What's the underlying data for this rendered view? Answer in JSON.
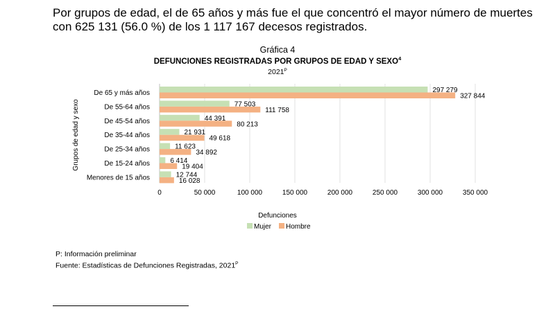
{
  "intro_text": "Por grupos de edad, el de 65 años y más fue el que concentró el mayor número de muertes con 625 131 (56.0 %) de los 1 117 167 decesos registrados.",
  "chart_data": {
    "type": "bar",
    "orientation": "horizontal",
    "label": "Gráfica 4",
    "title": "DEFUNCIONES REGISTRADAS POR GRUPOS DE EDAD Y SEXO",
    "title_superscript": "4",
    "subtitle": "2021",
    "subtitle_superscript": "P",
    "categories": [
      "De 65 y más años",
      "De 55-64 años",
      "De 45-54 años",
      "De 35-44 años",
      "De 25-34 años",
      "De 15-24 años",
      "Menores de 15 años"
    ],
    "series": [
      {
        "name": "Mujer",
        "color": "#c6e0b4",
        "values": [
          297279,
          77503,
          44391,
          21931,
          11623,
          6414,
          12744
        ],
        "labels": [
          "297 279",
          "77 503",
          "44 391",
          "21 931",
          "11 623",
          "6 414",
          "12 744"
        ]
      },
      {
        "name": "Hombre",
        "color": "#f4b183",
        "values": [
          327844,
          111758,
          80213,
          49618,
          34892,
          19404,
          16028
        ],
        "labels": [
          "327 844",
          "111 758",
          "80 213",
          "49 618",
          "34 892",
          "19 404",
          "16 028"
        ]
      }
    ],
    "xlabel": "Defunciones",
    "ylabel": "Grupos de edad y sexo",
    "xlim": [
      0,
      350000
    ],
    "xticks": [
      0,
      50000,
      100000,
      150000,
      200000,
      250000,
      300000,
      350000
    ],
    "xtick_labels": [
      "0",
      "50 000",
      "100 000",
      "150 000",
      "200 000",
      "250 000",
      "300 000",
      "350 000"
    ],
    "gridlines": true,
    "legend_position": "bottom"
  },
  "notes": {
    "preliminary": "P: Información preliminar",
    "source": "Fuente: Estadísticas de Defunciones Registradas, 2021",
    "source_superscript": "P"
  }
}
